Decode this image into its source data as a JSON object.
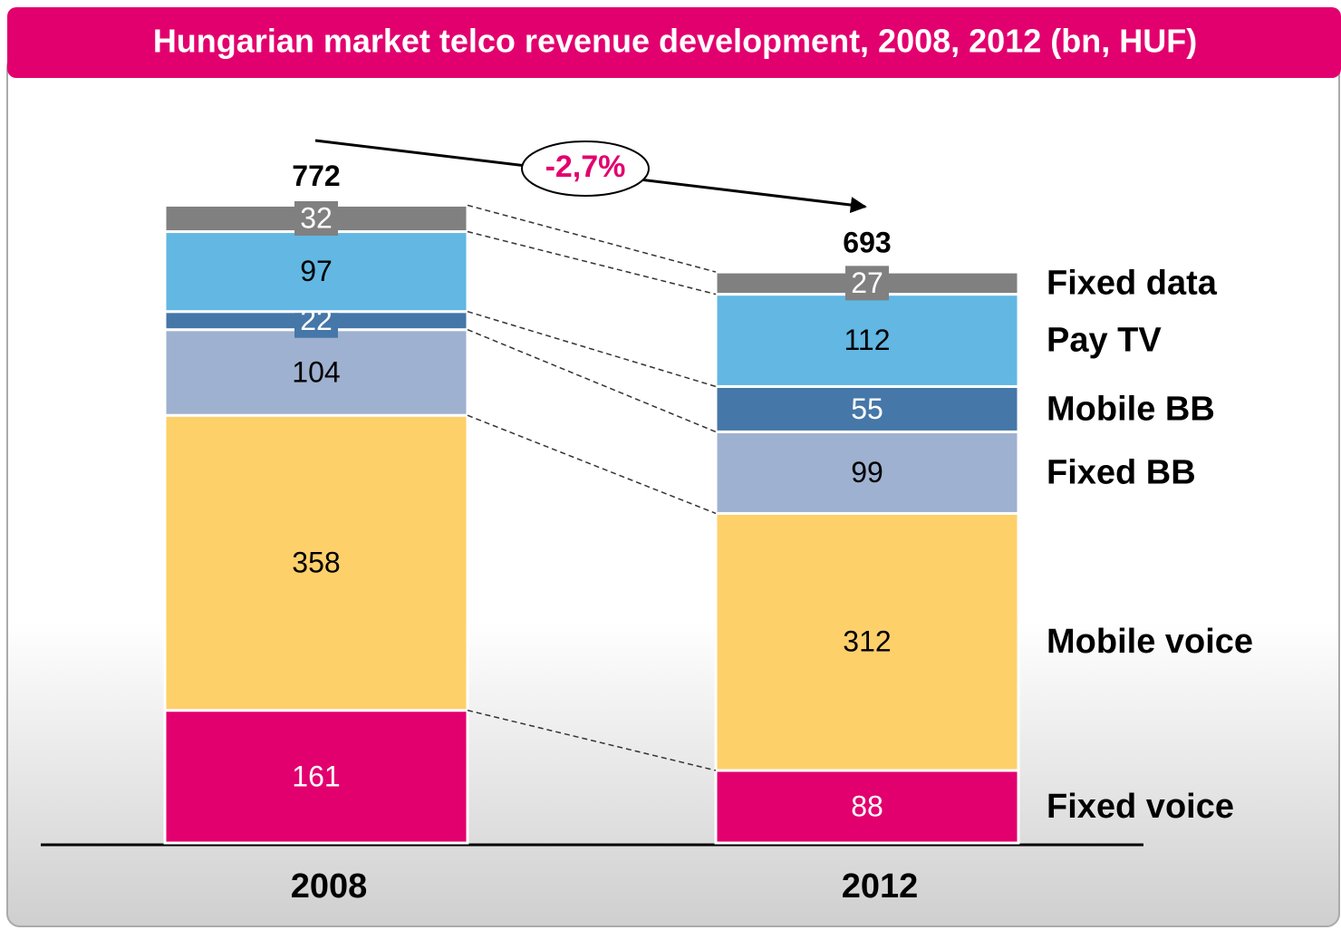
{
  "chart_data": {
    "type": "stacked_bar",
    "title": "Hungarian market telco revenue development, 2008, 2012 (bn, HUF)",
    "categories": [
      "2008",
      "2012"
    ],
    "series": [
      {
        "name": "Fixed voice",
        "color": "#e2006e",
        "values": [
          161,
          88
        ]
      },
      {
        "name": "Mobile voice",
        "color": "#fdd06a",
        "values": [
          358,
          312
        ]
      },
      {
        "name": "Fixed BB",
        "color": "#9fb1d0",
        "values": [
          104,
          99
        ]
      },
      {
        "name": "Mobile BB",
        "color": "#4577a8",
        "values": [
          22,
          55
        ]
      },
      {
        "name": "Pay TV",
        "color": "#62b7e3",
        "values": [
          97,
          112
        ]
      },
      {
        "name": "Fixed data",
        "color": "#808080",
        "values": [
          32,
          27
        ]
      }
    ],
    "totals": [
      772,
      693
    ],
    "annotation": "-2,7%"
  }
}
